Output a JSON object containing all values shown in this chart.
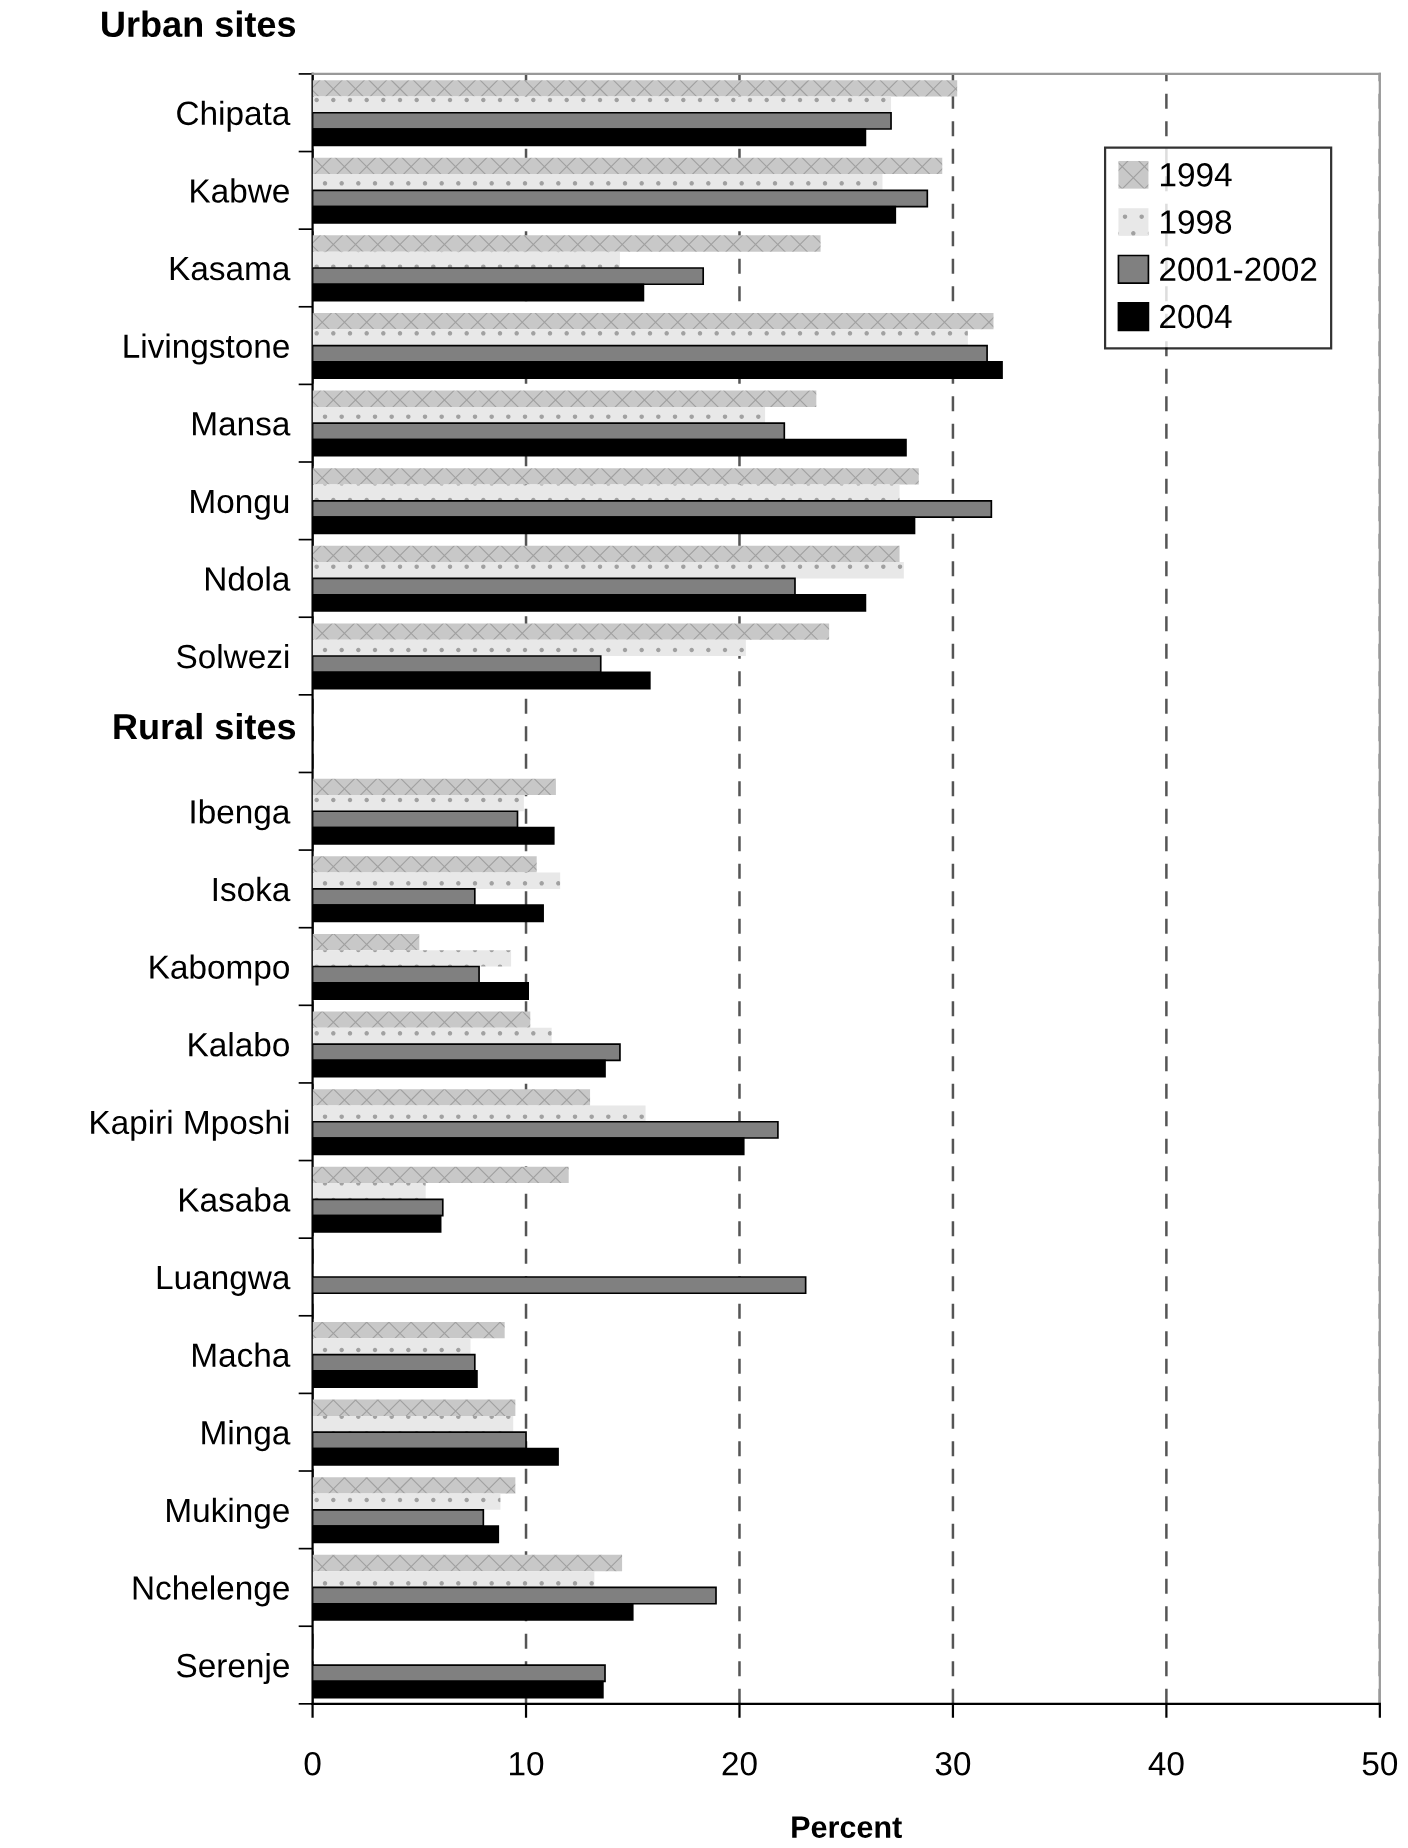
{
  "chart_data": {
    "type": "bar",
    "orientation": "horizontal",
    "xlabel": "Percent",
    "categories": [
      "Chipata",
      "Kabwe",
      "Kasama",
      "Livingstone",
      "Mansa",
      "Mongu",
      "Ndola",
      "Solwezi",
      null,
      "Ibenga",
      "Isoka",
      "Kabompo",
      "Kalabo",
      "Kapiri Mposhi",
      "Kasaba",
      "Luangwa",
      "Macha",
      "Minga",
      "Mukinge",
      "Nchelenge",
      "Serenje"
    ],
    "series": [
      {
        "name": "1994",
        "color": "#c8c8c8",
        "values": [
          30.2,
          29.5,
          23.8,
          31.9,
          23.6,
          28.4,
          27.5,
          24.2,
          null,
          11.4,
          10.5,
          5.0,
          10.2,
          13.0,
          12.0,
          null,
          9.0,
          9.5,
          9.5,
          14.5,
          null
        ]
      },
      {
        "name": "1998",
        "color": "#e8e8e8",
        "values": [
          27.1,
          26.7,
          14.4,
          30.7,
          21.2,
          27.5,
          27.7,
          20.3,
          null,
          9.9,
          11.6,
          9.3,
          11.2,
          15.6,
          5.3,
          null,
          7.4,
          9.4,
          8.8,
          13.2,
          null
        ]
      },
      {
        "name": "2001-2002",
        "color": "#808080",
        "values": [
          27.1,
          28.8,
          18.3,
          31.6,
          22.1,
          31.8,
          22.6,
          13.5,
          null,
          9.6,
          7.6,
          7.8,
          14.4,
          21.8,
          6.1,
          23.1,
          7.6,
          10.0,
          8.0,
          18.9,
          13.7
        ]
      },
      {
        "name": "2004",
        "color": "#000000",
        "values": [
          25.9,
          27.3,
          15.5,
          32.3,
          27.8,
          28.2,
          25.9,
          15.8,
          null,
          11.3,
          10.8,
          10.1,
          13.7,
          20.2,
          6.0,
          null,
          7.7,
          11.5,
          8.7,
          15.0,
          13.6
        ]
      }
    ],
    "xlim": [
      0,
      50
    ],
    "xticks": [
      0,
      10,
      20,
      30,
      40,
      50
    ],
    "grid": "x",
    "legend": "top right",
    "annotations": [
      "Urban sites",
      "Rural sites"
    ]
  }
}
